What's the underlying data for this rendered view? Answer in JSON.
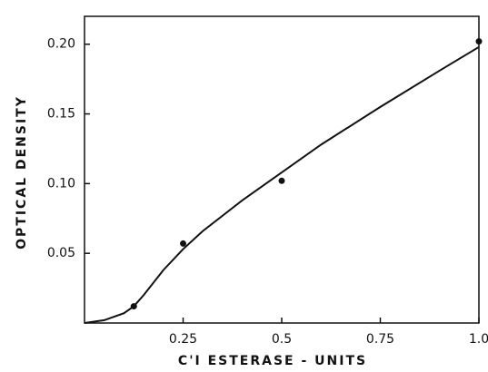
{
  "chart_data": {
    "type": "scatter",
    "xlabel": "C'I ESTERASE - UNITS",
    "ylabel": "OPTICAL DENSITY",
    "points": {
      "x": [
        0.125,
        0.25,
        0.5,
        1.0
      ],
      "y": [
        0.012,
        0.057,
        0.102,
        0.202
      ],
      "color": "#111"
    },
    "curve": {
      "x": [
        0,
        0.05,
        0.1,
        0.125,
        0.15,
        0.2,
        0.25,
        0.3,
        0.4,
        0.5,
        0.6,
        0.75,
        0.9,
        1.0
      ],
      "y": [
        0,
        0.002,
        0.007,
        0.012,
        0.02,
        0.038,
        0.053,
        0.066,
        0.088,
        0.108,
        0.128,
        0.155,
        0.181,
        0.198
      ],
      "color": "#111"
    },
    "xlim": [
      0,
      1.0
    ],
    "ylim": [
      0,
      0.22
    ],
    "xticks": [
      0.25,
      0.5,
      0.75,
      {
        "value": 1.0,
        "label": "1.0"
      }
    ],
    "yticks": [
      0.05,
      {
        "value": 0.1,
        "label": "0.10"
      },
      0.15,
      {
        "value": 0.2,
        "label": "0.20"
      }
    ]
  }
}
